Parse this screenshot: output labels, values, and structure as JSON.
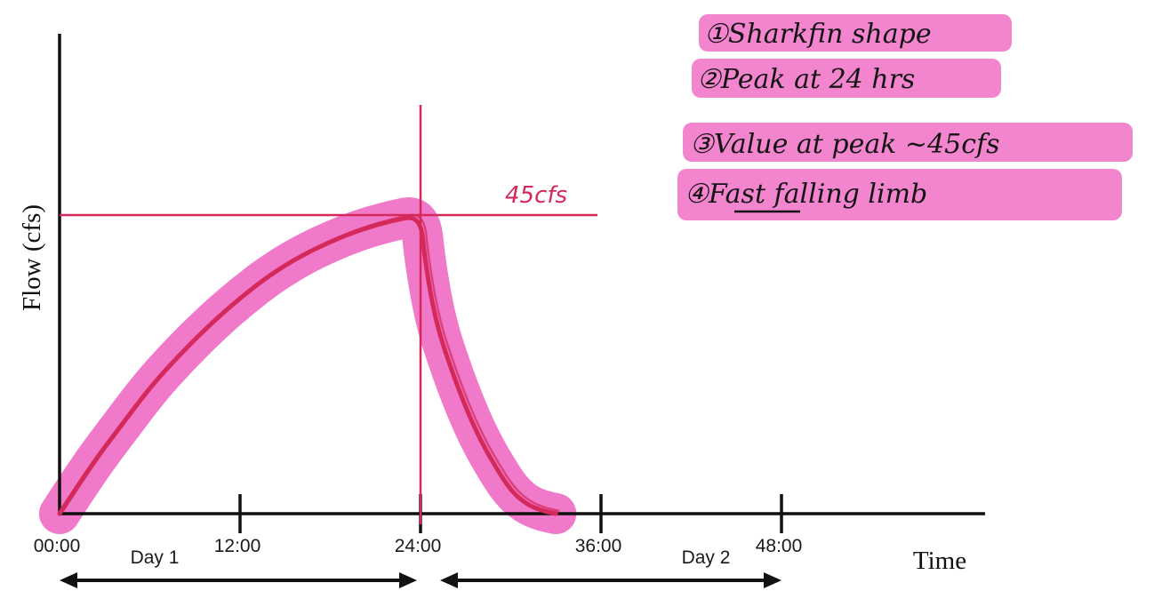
{
  "chart_data": {
    "type": "line",
    "title": "",
    "xlabel": "Time",
    "ylabel": "Flow (cfs)",
    "x_unit": "hours",
    "xlim": [
      0,
      48
    ],
    "ylim": [
      0,
      45
    ],
    "x_ticks": [
      {
        "value": 0,
        "label": "00:00"
      },
      {
        "value": 12,
        "label": "12:00"
      },
      {
        "value": 24,
        "label": "24:00"
      },
      {
        "value": 36,
        "label": "36:00"
      },
      {
        "value": 48,
        "label": "48:00"
      }
    ],
    "day_spans": [
      {
        "label": "Day 1",
        "start": 0,
        "end": 24
      },
      {
        "label": "Day 2",
        "start": 24,
        "end": 48
      }
    ],
    "series": [
      {
        "points": [
          {
            "x": 0,
            "y": 0
          },
          {
            "x": 2,
            "y": 7
          },
          {
            "x": 4,
            "y": 13
          },
          {
            "x": 6,
            "y": 19
          },
          {
            "x": 8,
            "y": 24
          },
          {
            "x": 10,
            "y": 28.5
          },
          {
            "x": 12,
            "y": 32.5
          },
          {
            "x": 14,
            "y": 36
          },
          {
            "x": 16,
            "y": 38.8
          },
          {
            "x": 18,
            "y": 41
          },
          {
            "x": 20,
            "y": 42.8
          },
          {
            "x": 22,
            "y": 44.1
          },
          {
            "x": 24,
            "y": 45
          },
          {
            "x": 24.3,
            "y": 38
          },
          {
            "x": 25,
            "y": 29
          },
          {
            "x": 26,
            "y": 22
          },
          {
            "x": 27,
            "y": 16
          },
          {
            "x": 28,
            "y": 11
          },
          {
            "x": 29,
            "y": 7
          },
          {
            "x": 30,
            "y": 3.5
          },
          {
            "x": 31,
            "y": 1.5
          },
          {
            "x": 32,
            "y": 0.5
          },
          {
            "x": 33,
            "y": 0
          }
        ]
      }
    ],
    "annotations": {
      "peak_label": "45cfs",
      "peak_x": 24,
      "peak_y": 45,
      "notes": [
        "①Sharkfin shape",
        "②Peak at 24 hrs",
        "③Value at peak ~45cfs",
        "④Fast falling limb"
      ]
    },
    "colors": {
      "line": "#d42a5b",
      "highlight": "#f06ac4",
      "axis": "#111111"
    }
  }
}
